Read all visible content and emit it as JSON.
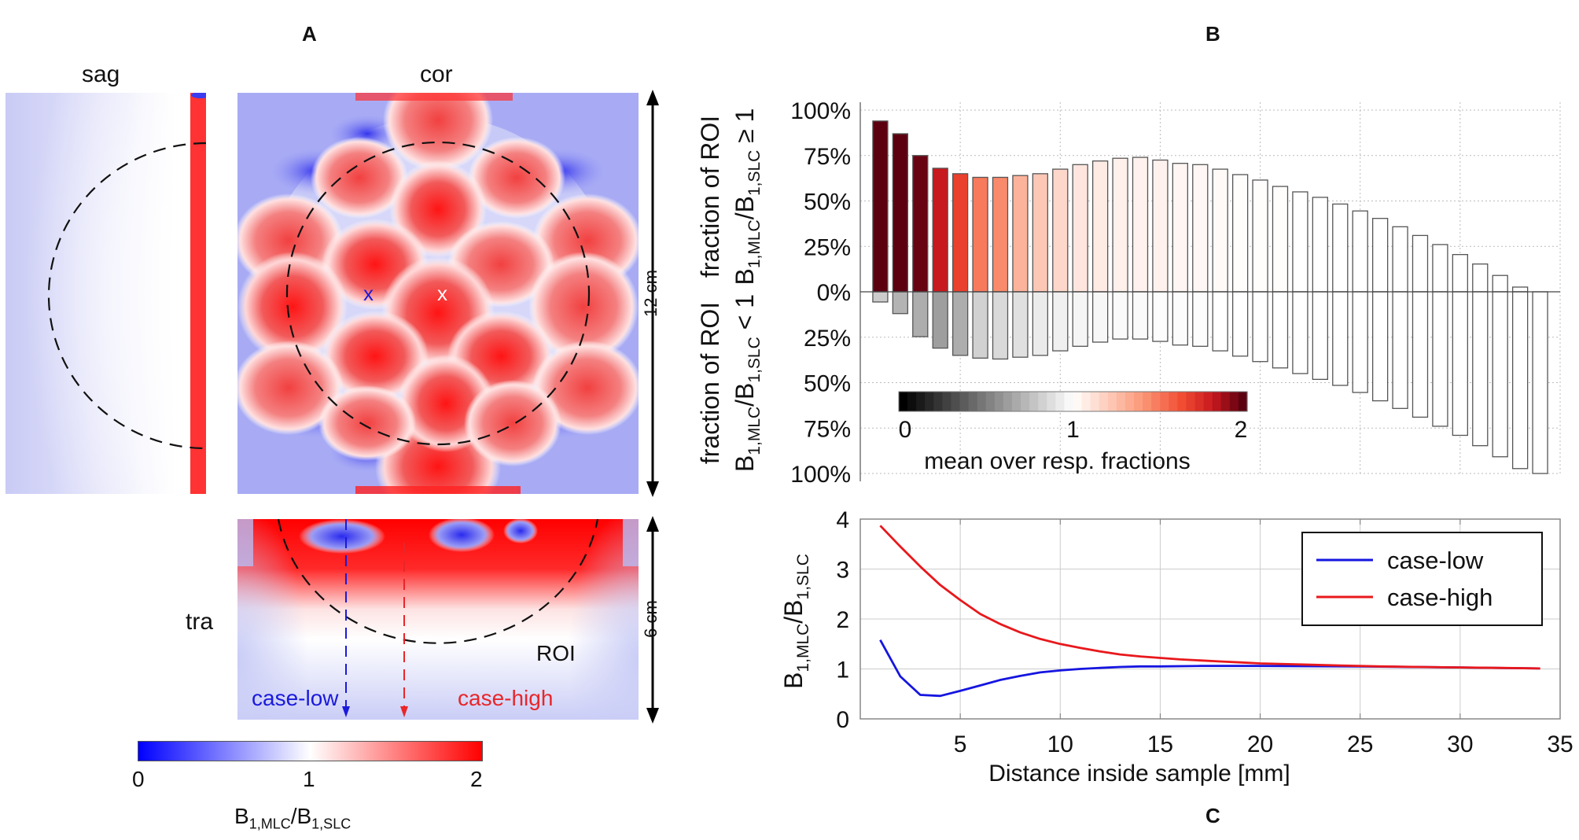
{
  "panel_labels": {
    "a": "A",
    "b": "B",
    "c": "C"
  },
  "panel_a": {
    "views": {
      "sag": "sag",
      "cor": "cor",
      "tra": "tra"
    },
    "scale_vertical_cor": "12 cm",
    "scale_vertical_tra": "6 cm",
    "roi_label": "ROI",
    "marker_low": "x",
    "marker_high": "x",
    "case_low_label": "case-low",
    "case_high_label": "case-high",
    "colorbar": {
      "ticks": [
        "0",
        "1",
        "2"
      ],
      "range": [
        0,
        2
      ],
      "colors": {
        "low": "#0000ff",
        "mid": "#ffffff",
        "high": "#ff0000"
      },
      "label_main": "B",
      "label_sub1": "1,MLC",
      "label_mid": "/B",
      "label_sub2": "1,SLC"
    },
    "colors": {
      "case_low": "#1a1adb",
      "case_high": "#e8262a"
    }
  },
  "chart_data": [
    {
      "id": "B",
      "type": "bar",
      "title": "",
      "xlabel": "Distance inside sample [mm]",
      "xlim": [
        0,
        35
      ],
      "ylim_upper": [
        0,
        100
      ],
      "ylim_lower": [
        0,
        100
      ],
      "grid": true,
      "ylabel_upper": {
        "line1": "fraction of ROI",
        "b": "B",
        "s1": "1,MLC",
        "mid": "/B",
        "s2": "1,SLC",
        "cond": " ≥ 1"
      },
      "ylabel_lower": {
        "line1": "fraction of ROI",
        "b": "B",
        "s1": "1,MLC",
        "mid": "/B",
        "s2": "1,SLC",
        "cond": " < 1"
      },
      "yticks_upper": [
        "100%",
        "75%",
        "50%",
        "25%",
        "0%"
      ],
      "yticks_lower": [
        "25%",
        "50%",
        "75%",
        "100%"
      ],
      "x": [
        1,
        2,
        3,
        4,
        5,
        6,
        7,
        8,
        9,
        10,
        11,
        12,
        13,
        14,
        15,
        16,
        17,
        18,
        19,
        20,
        21,
        22,
        23,
        24,
        25,
        26,
        27,
        28,
        29,
        30,
        31,
        32,
        33,
        34
      ],
      "series": [
        {
          "name": "fraction B1,MLC/B1,SLC >= 1",
          "values": [
            94,
            87,
            75,
            68,
            65,
            63,
            63,
            64,
            65,
            67.5,
            70,
            72,
            73.5,
            74,
            72.5,
            70.7,
            70,
            67.5,
            64.5,
            61.5,
            58,
            55,
            52,
            48.3,
            44.5,
            40.4,
            35.8,
            31,
            26,
            20.5,
            15.3,
            9,
            2.6,
            0
          ],
          "mean_ratio": [
            2.0,
            2.0,
            1.98,
            1.82,
            1.68,
            1.5,
            1.45,
            1.3,
            1.22,
            1.16,
            1.1,
            1.08,
            1.06,
            1.05,
            1.05,
            1.04,
            1.03,
            1.02,
            1.01,
            1.01,
            1.01,
            1.0,
            1.0,
            1.0,
            1.0,
            1.0,
            1.0,
            1.0,
            1.0,
            1.0,
            1.0,
            1.0,
            1.0,
            1.0
          ]
        },
        {
          "name": "fraction B1,MLC/B1,SLC < 1",
          "values": [
            5.6,
            12,
            24.7,
            31,
            35,
            36.5,
            37,
            36,
            35,
            32.5,
            30,
            27.7,
            26,
            26,
            27.3,
            29.3,
            30,
            32.5,
            35.4,
            38.4,
            41.9,
            45,
            48.2,
            51.5,
            55.4,
            60,
            64.2,
            69,
            74,
            79,
            84.7,
            90.8,
            97.3,
            100
          ],
          "mean_ratio": [
            0.8,
            0.7,
            0.68,
            0.62,
            0.68,
            0.82,
            0.85,
            0.88,
            0.92,
            0.94,
            0.96,
            0.97,
            0.98,
            0.98,
            0.99,
            0.99,
            0.99,
            1.0,
            1.0,
            1.0,
            1.0,
            1.0,
            1.0,
            1.0,
            1.0,
            1.0,
            1.0,
            1.0,
            1.0,
            1.0,
            1.0,
            1.0,
            1.0,
            1.0
          ]
        }
      ],
      "colorbar": {
        "ticks": [
          "0",
          "1",
          "2"
        ],
        "range": [
          0,
          2
        ],
        "label": "mean over resp. fractions",
        "colors": {
          "low": "#000000",
          "mid": "#ffffff",
          "high": "#67000d"
        }
      }
    },
    {
      "id": "C",
      "type": "line",
      "title": "",
      "xlabel": "Distance inside sample [mm]",
      "ylabel": {
        "b": "B",
        "s1": "1,MLC",
        "mid": "/B",
        "s2": "1,SLC"
      },
      "xlim": [
        0,
        35
      ],
      "ylim": [
        0,
        4
      ],
      "xticks": [
        "5",
        "10",
        "15",
        "20",
        "25",
        "30",
        "35"
      ],
      "xtick_values": [
        5,
        10,
        15,
        20,
        25,
        30,
        35
      ],
      "yticks": [
        "0",
        "1",
        "2",
        "3",
        "4"
      ],
      "ytick_values": [
        0,
        1,
        2,
        3,
        4
      ],
      "grid": true,
      "legend_position": "top-right",
      "series": [
        {
          "name": "case-low",
          "color": "#1515e0",
          "x": [
            1,
            2,
            3,
            4,
            5,
            6,
            7,
            8,
            9,
            10,
            11,
            12,
            13,
            14,
            15,
            17,
            20,
            25,
            30,
            34
          ],
          "y": [
            1.58,
            0.85,
            0.48,
            0.46,
            0.56,
            0.67,
            0.78,
            0.86,
            0.93,
            0.97,
            1.0,
            1.02,
            1.04,
            1.05,
            1.05,
            1.06,
            1.06,
            1.05,
            1.03,
            1.01
          ]
        },
        {
          "name": "case-high",
          "color": "#e8181c",
          "x": [
            1,
            2,
            3,
            4,
            5,
            6,
            7,
            8,
            9,
            10,
            11,
            12,
            13,
            14,
            15,
            16,
            17,
            18,
            19,
            20,
            22,
            24,
            26,
            28,
            30,
            32,
            34
          ],
          "y": [
            3.87,
            3.45,
            3.05,
            2.68,
            2.38,
            2.1,
            1.9,
            1.73,
            1.6,
            1.5,
            1.42,
            1.35,
            1.29,
            1.25,
            1.22,
            1.19,
            1.17,
            1.15,
            1.13,
            1.11,
            1.09,
            1.07,
            1.05,
            1.04,
            1.03,
            1.02,
            1.01
          ]
        }
      ]
    }
  ]
}
